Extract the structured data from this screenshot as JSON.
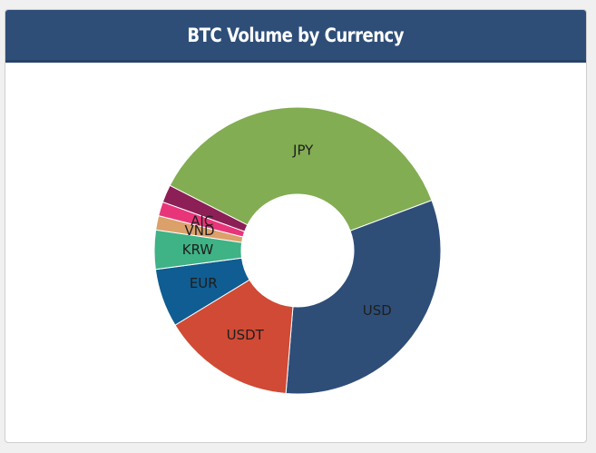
{
  "panel": {
    "title": "BTC Volume by Currency"
  },
  "chart_data": {
    "type": "pie",
    "donut": true,
    "title": "BTC Volume by Currency",
    "slices": [
      {
        "label": "JPY",
        "value": 36.8,
        "color": "#82ad52"
      },
      {
        "label": "USD",
        "value": 32.0,
        "color": "#2e4e78"
      },
      {
        "label": "USDT",
        "value": 15.0,
        "color": "#d04a35"
      },
      {
        "label": "EUR",
        "value": 6.6,
        "color": "#0f5d92"
      },
      {
        "label": "KRW",
        "value": 4.4,
        "color": "#3fb286"
      },
      {
        "label": "VND",
        "value": 1.6,
        "color": "#dca06b"
      },
      {
        "label": "AIC",
        "value": 1.6,
        "color": "#e8357a"
      },
      {
        "label": "",
        "value": 2.0,
        "color": "#8c1f56"
      }
    ]
  }
}
